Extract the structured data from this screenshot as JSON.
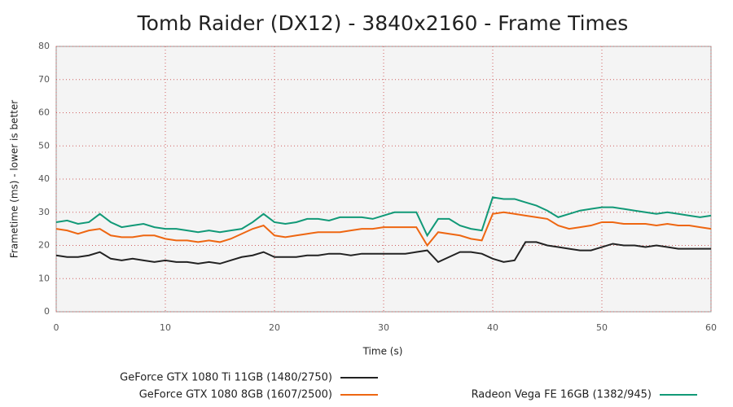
{
  "chart_data": {
    "type": "line",
    "title": "Tomb Raider (DX12) - 3840x2160 - Frame Times",
    "x_label": "Time (s)",
    "y_label": "Frametime (ms) - lower is better",
    "x": [
      0,
      1,
      2,
      3,
      4,
      5,
      6,
      7,
      8,
      9,
      10,
      11,
      12,
      13,
      14,
      15,
      16,
      17,
      18,
      19,
      20,
      21,
      22,
      23,
      24,
      25,
      26,
      27,
      28,
      29,
      30,
      31,
      32,
      33,
      34,
      35,
      36,
      37,
      38,
      39,
      40,
      41,
      42,
      43,
      44,
      45,
      46,
      47,
      48,
      49,
      50,
      51,
      52,
      53,
      54,
      55,
      56,
      57,
      58,
      59,
      60
    ],
    "series": [
      {
        "name": "GeForce GTX 1080 Ti 11GB (1480/2750)",
        "color": "#222222",
        "values": [
          17,
          16.5,
          16.5,
          17,
          18,
          16,
          15.5,
          16,
          15.5,
          15,
          15.5,
          15,
          15,
          14.5,
          15,
          14.5,
          15.5,
          16.5,
          17,
          18,
          16.5,
          16.5,
          16.5,
          17,
          17,
          17.5,
          17.5,
          17,
          17.5,
          17.5,
          17.5,
          17.5,
          17.5,
          18,
          18.5,
          15,
          16.5,
          18,
          18,
          17.5,
          16,
          15,
          15.5,
          21,
          21,
          20,
          19.5,
          19,
          18.5,
          18.5,
          19.5,
          20.5,
          20,
          20,
          19.5,
          20,
          19.5,
          19,
          19,
          19,
          19
        ]
      },
      {
        "name": "GeForce GTX 1080 8GB (1607/2500)",
        "color": "#ee6611",
        "values": [
          25,
          24.5,
          23.5,
          24.5,
          25,
          23,
          22.5,
          22.5,
          23,
          23,
          22,
          21.5,
          21.5,
          21,
          21.5,
          21,
          22,
          23.5,
          25,
          26,
          23,
          22.5,
          23,
          23.5,
          24,
          24,
          24,
          24.5,
          25,
          25,
          25.5,
          25.5,
          25.5,
          25.5,
          20,
          24,
          23.5,
          23,
          22,
          21.5,
          29.5,
          30,
          29.5,
          29,
          28.5,
          28,
          26,
          25,
          25.5,
          26,
          27,
          27,
          26.5,
          26.5,
          26.5,
          26,
          26.5,
          26,
          26,
          25.5,
          25
        ]
      },
      {
        "name": "Radeon Vega FE 16GB (1382/945)",
        "color": "#119977",
        "values": [
          27,
          27.5,
          26.5,
          27,
          29.5,
          27,
          25.5,
          26,
          26.5,
          25.5,
          25,
          25,
          24.5,
          24,
          24.5,
          24,
          24.5,
          25,
          27,
          29.5,
          27,
          26.5,
          27,
          28,
          28,
          27.5,
          28.5,
          28.5,
          28.5,
          28,
          29,
          30,
          30,
          30,
          23,
          28,
          28,
          26,
          25,
          24.5,
          34.5,
          34,
          34,
          33,
          32,
          30.5,
          28.5,
          29.5,
          30.5,
          31,
          31.5,
          31.5,
          31,
          30.5,
          30,
          29.5,
          30,
          29.5,
          29,
          28.5,
          29
        ]
      }
    ],
    "xlim": [
      0,
      60
    ],
    "xticks": [
      0,
      10,
      20,
      30,
      40,
      50,
      60
    ],
    "ylim": [
      0,
      80
    ],
    "yticks": [
      0,
      10,
      20,
      30,
      40,
      50,
      60,
      70,
      80
    ],
    "grid": true
  }
}
